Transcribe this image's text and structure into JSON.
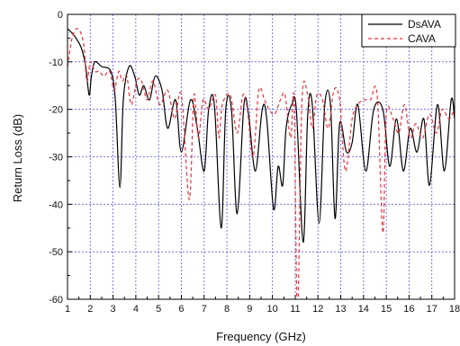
{
  "chart_data": {
    "type": "line",
    "title": "",
    "xlabel": "Frequency (GHz)",
    "ylabel": "Return Loss (dB)",
    "xlim": [
      1,
      18
    ],
    "ylim": [
      -60,
      0
    ],
    "x_ticks": [
      "1",
      "2",
      "3",
      "4",
      "5",
      "6",
      "7",
      "8",
      "9",
      "10",
      "11",
      "12",
      "13",
      "14",
      "15",
      "16",
      "17",
      "18"
    ],
    "y_ticks": [
      "0",
      "-10",
      "-20",
      "-30",
      "-40",
      "-50",
      "-60"
    ],
    "grid": true,
    "legend_position": "top-right",
    "series": [
      {
        "name": "DsAVA",
        "color": "#000000",
        "style": "solid",
        "x": [
          1.0,
          1.3,
          1.6,
          1.8,
          1.95,
          2.05,
          2.2,
          2.5,
          2.9,
          3.1,
          3.3,
          3.45,
          3.7,
          3.95,
          4.15,
          4.35,
          4.6,
          4.85,
          5.15,
          5.4,
          5.75,
          6.0,
          6.4,
          6.7,
          7.0,
          7.2,
          7.45,
          7.75,
          7.95,
          8.2,
          8.45,
          8.75,
          8.95,
          9.25,
          9.55,
          9.75,
          10.05,
          10.25,
          10.45,
          10.6,
          10.85,
          11.05,
          11.35,
          11.55,
          11.75,
          12.05,
          12.3,
          12.55,
          12.75,
          12.95,
          13.25,
          13.5,
          13.75,
          14.1,
          14.45,
          14.85,
          15.15,
          15.45,
          15.75,
          16.05,
          16.35,
          16.65,
          16.9,
          17.25,
          17.55,
          17.85,
          18.0
        ],
        "y": [
          -3,
          -4.5,
          -7,
          -11,
          -17,
          -13,
          -10,
          -11,
          -12,
          -18,
          -36.5,
          -18,
          -11,
          -13,
          -17,
          -15,
          -18,
          -13,
          -16,
          -24,
          -18,
          -29,
          -18,
          -24,
          -33,
          -20,
          -19,
          -45,
          -20,
          -20,
          -42,
          -19,
          -21,
          -33,
          -20,
          -22,
          -41,
          -32,
          -36,
          -24,
          -19,
          -20,
          -48,
          -21,
          -19,
          -44,
          -19,
          -19,
          -43,
          -23,
          -29,
          -27,
          -19,
          -33,
          -20,
          -20,
          -32,
          -22,
          -33,
          -24,
          -29,
          -22,
          -36,
          -19,
          -33,
          -18,
          -22
        ]
      },
      {
        "name": "CAVA",
        "color": "#e8323c",
        "style": "dashed",
        "x": [
          1.0,
          1.2,
          1.45,
          1.7,
          1.85,
          2.0,
          2.2,
          2.4,
          2.6,
          2.85,
          3.05,
          3.25,
          3.4,
          3.6,
          3.8,
          4.05,
          4.25,
          4.5,
          4.75,
          5.05,
          5.4,
          5.7,
          6.0,
          6.35,
          6.55,
          6.75,
          6.95,
          7.2,
          7.5,
          7.65,
          7.8,
          8.15,
          8.45,
          8.7,
          8.9,
          9.15,
          9.4,
          9.65,
          9.85,
          10.1,
          10.35,
          10.55,
          10.8,
          10.95,
          11.1,
          11.3,
          11.55,
          11.75,
          11.95,
          12.2,
          12.45,
          12.7,
          12.95,
          13.2,
          13.5,
          13.75,
          14.0,
          14.3,
          14.6,
          14.85,
          15.0,
          15.3,
          15.55,
          15.8,
          16.05,
          16.3,
          16.6,
          16.9,
          17.2,
          17.45,
          17.75,
          18.0
        ],
        "y": [
          -11,
          -5,
          -3,
          -6,
          -14,
          -10,
          -12,
          -12,
          -13,
          -12,
          -16,
          -12,
          -14,
          -13,
          -19,
          -14,
          -14,
          -18,
          -14,
          -19,
          -16,
          -22,
          -17,
          -39,
          -17,
          -26,
          -18,
          -20,
          -17,
          -26,
          -19,
          -17,
          -25,
          -17,
          -20,
          -30,
          -16,
          -18,
          -20,
          -21,
          -18,
          -17,
          -26,
          -18,
          -63,
          -18,
          -17,
          -24,
          -17,
          -18,
          -24,
          -16,
          -18,
          -33,
          -22,
          -19,
          -18,
          -18,
          -17,
          -46,
          -21,
          -22,
          -25,
          -19,
          -26,
          -23,
          -26,
          -21,
          -25,
          -20,
          -22,
          -20
        ]
      }
    ]
  }
}
